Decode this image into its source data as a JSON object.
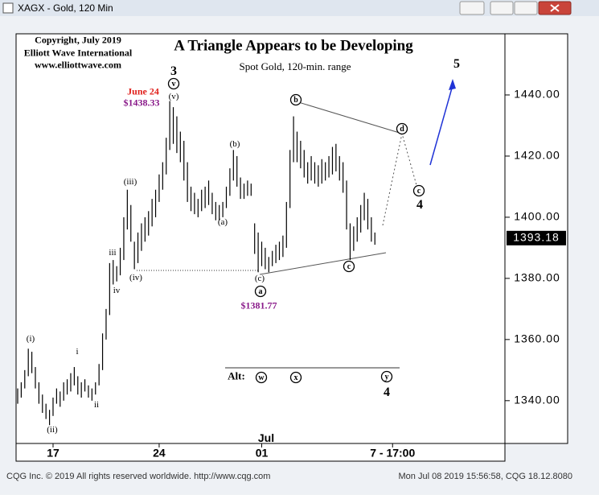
{
  "window": {
    "title": "XAGX - Gold, 120 Min",
    "status_left": "CQG Inc. © 2019 All rights reserved worldwide. http://www.cqg.com",
    "status_right": "Mon Jul 08 2019 15:56:58, CQG 18.12.8080"
  },
  "chart_data": {
    "type": "ohlc",
    "title": "A Triangle Appears to be Developing",
    "subtitle": "Spot Gold, 120-min. range",
    "color": "#000000",
    "x": [
      0,
      1,
      2,
      3,
      4,
      5,
      6,
      7,
      8,
      9,
      10,
      11,
      12,
      13,
      14,
      15,
      16,
      17,
      18,
      19,
      20,
      21,
      22,
      23,
      24,
      25,
      26,
      27,
      28,
      29,
      30,
      31,
      32,
      33,
      34,
      35,
      36,
      37,
      38,
      39,
      40,
      41,
      42,
      43,
      44,
      45,
      46,
      47,
      48,
      49,
      50,
      51,
      52,
      53,
      54,
      55,
      56,
      57,
      58,
      59,
      60,
      61,
      62,
      63,
      64,
      65,
      66,
      67,
      68,
      69,
      70,
      71,
      72,
      73,
      74,
      75,
      76,
      77,
      78,
      79,
      80,
      81,
      82,
      83,
      84,
      85,
      86,
      87,
      88,
      89,
      90,
      91,
      92,
      93,
      94,
      95,
      96,
      97,
      98,
      99,
      100,
      101
    ],
    "high": [
      1344,
      1346,
      1350,
      1357,
      1356,
      1351,
      1346,
      1342,
      1339,
      1337,
      1341,
      1344,
      1343,
      1346,
      1347,
      1349,
      1351,
      1348,
      1346,
      1347,
      1345,
      1344,
      1346,
      1352,
      1362,
      1370,
      1385,
      1386,
      1384,
      1390,
      1400,
      1409,
      1404,
      1392,
      1395,
      1398,
      1400,
      1402,
      1406,
      1409,
      1414,
      1418,
      1426,
      1438,
      1436,
      1433,
      1428,
      1425,
      1418,
      1410,
      1408,
      1406,
      1409,
      1410,
      1412,
      1408,
      1405,
      1404,
      1405,
      1410,
      1416,
      1422,
      1420,
      1413,
      1411,
      1412,
      1411,
      1398,
      1395,
      1392,
      1390,
      1387,
      1389,
      1391,
      1392,
      1394,
      1405,
      1422,
      1433,
      1428,
      1425,
      1422,
      1418,
      1420,
      1418,
      1417,
      1419,
      1418,
      1420,
      1423,
      1424,
      1420,
      1418,
      1412,
      1398,
      1397,
      1400,
      1404,
      1408,
      1406,
      1400,
      1395
    ],
    "low": [
      1339,
      1341,
      1344,
      1348,
      1349,
      1344,
      1339,
      1336,
      1334,
      1332,
      1335,
      1339,
      1338,
      1340,
      1342,
      1343,
      1345,
      1342,
      1341,
      1343,
      1341,
      1340,
      1342,
      1345,
      1350,
      1360,
      1368,
      1378,
      1379,
      1381,
      1386,
      1396,
      1392,
      1383,
      1385,
      1389,
      1392,
      1394,
      1397,
      1400,
      1405,
      1409,
      1414,
      1422,
      1424,
      1421,
      1418,
      1412,
      1405,
      1402,
      1401,
      1400,
      1402,
      1403,
      1404,
      1401,
      1399,
      1399,
      1400,
      1403,
      1407,
      1412,
      1410,
      1406,
      1406,
      1407,
      1407,
      1388,
      1382,
      1384,
      1383,
      1382,
      1384,
      1385,
      1386,
      1387,
      1390,
      1403,
      1418,
      1418,
      1416,
      1413,
      1411,
      1412,
      1411,
      1410,
      1411,
      1412,
      1413,
      1414,
      1415,
      1412,
      1408,
      1396,
      1386,
      1389,
      1392,
      1395,
      1399,
      1396,
      1392,
      1391
    ],
    "xlim": [
      0,
      138
    ],
    "ylim": [
      1326,
      1460
    ],
    "yticks": [
      {
        "value": 1340,
        "label": "1340.00"
      },
      {
        "value": 1360,
        "label": "1360.00"
      },
      {
        "value": 1380,
        "label": "1380.00"
      },
      {
        "value": 1400,
        "label": "1400.00"
      },
      {
        "value": 1420,
        "label": "1420.00"
      },
      {
        "value": 1440,
        "label": "1440.00"
      }
    ],
    "xticks": [
      {
        "value": 10,
        "label": "17"
      },
      {
        "value": 40,
        "label": "24"
      },
      {
        "value": 69,
        "label": "01"
      },
      {
        "value": 106,
        "label": "7 - 17:00"
      }
    ],
    "last_price": {
      "value": 1393.18,
      "label": "1393.18"
    },
    "annotations": [
      {
        "text": "Copyright, July 2019"
      },
      {
        "text": "Elliott Wave International"
      },
      {
        "text": "www.elliottwave.com"
      },
      {
        "text": "June 24",
        "color": "#e0201c"
      },
      {
        "text": "$1438.33",
        "color": "#8a1a8a"
      },
      {
        "text": "3"
      },
      {
        "text": "v",
        "circled": true
      },
      {
        "text": "(v)"
      },
      {
        "text": "(i)"
      },
      {
        "text": "(ii)"
      },
      {
        "text": "i"
      },
      {
        "text": "ii"
      },
      {
        "text": "iii"
      },
      {
        "text": "iv"
      },
      {
        "text": "(iii)"
      },
      {
        "text": "(iv)"
      },
      {
        "text": "(b)"
      },
      {
        "text": "(a)"
      },
      {
        "text": "(c)"
      },
      {
        "text": "a",
        "circled": true
      },
      {
        "text": "$1381.77",
        "color": "#8a1a8a"
      },
      {
        "text": "b",
        "circled": true
      },
      {
        "text": "d",
        "circled": true
      },
      {
        "text": "c",
        "circled": true
      },
      {
        "text": "4"
      },
      {
        "text": "c",
        "circled": true
      },
      {
        "text": "5"
      },
      {
        "text": "Alt:"
      },
      {
        "text": "w",
        "circled": true
      },
      {
        "text": "x",
        "circled": true
      },
      {
        "text": "y",
        "circled": true
      },
      {
        "text": "4"
      },
      {
        "text": "Jul"
      }
    ]
  }
}
